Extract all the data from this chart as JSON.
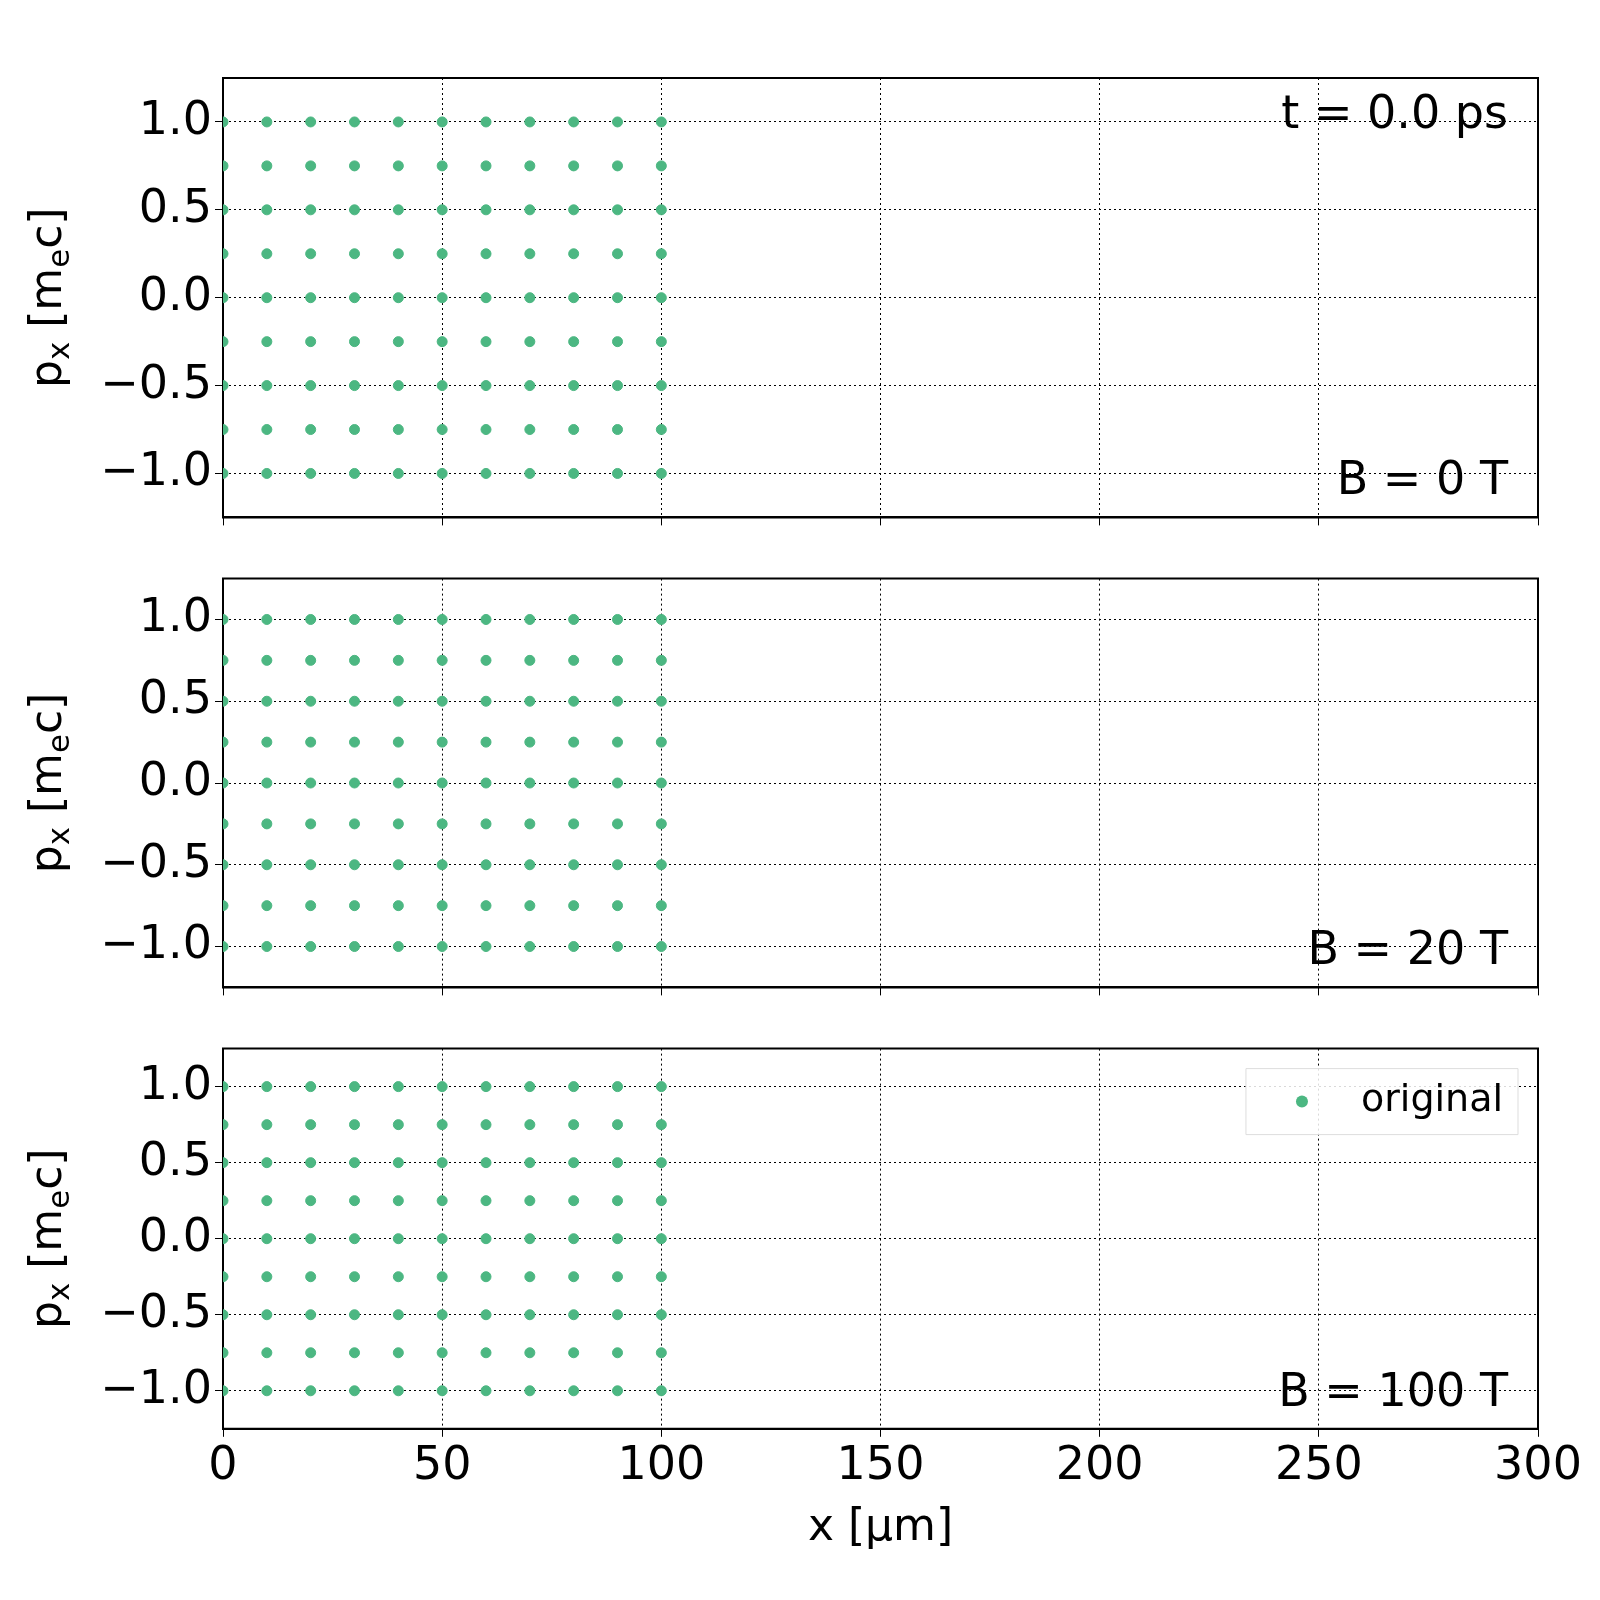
{
  "chart_data": [
    {
      "type": "scatter",
      "ylabel": "p$_{x}$ [m$_{e}$c]",
      "xlim": [
        0,
        300
      ],
      "xticks": [
        0,
        50,
        100,
        150,
        200,
        250,
        300
      ],
      "ylim": [
        -1.25,
        1.25
      ],
      "yticks": [
        {
          "value": -1,
          "label": "−1.0"
        },
        {
          "value": -0.5,
          "label": "−0.5"
        },
        {
          "value": 0,
          "label": "0.0"
        },
        {
          "value": 0.5,
          "label": "0.5"
        },
        {
          "value": 1,
          "label": "1.0"
        }
      ],
      "grid": true,
      "tick_labels": "y",
      "marker": "circle",
      "annotations": [
        "t = 0.0 ps",
        "B = 0 T"
      ],
      "series": [
        {
          "color": "#4cb782",
          "x": [
            0,
            10,
            20,
            30,
            40,
            50,
            60,
            70,
            80,
            90,
            100,
            0,
            10,
            20,
            30,
            40,
            50,
            60,
            70,
            80,
            90,
            100,
            0,
            10,
            20,
            30,
            40,
            50,
            60,
            70,
            80,
            90,
            100,
            0,
            10,
            20,
            30,
            40,
            50,
            60,
            70,
            80,
            90,
            100,
            0,
            10,
            20,
            30,
            40,
            50,
            60,
            70,
            80,
            90,
            100,
            0,
            10,
            20,
            30,
            40,
            50,
            60,
            70,
            80,
            90,
            100,
            0,
            10,
            20,
            30,
            40,
            50,
            60,
            70,
            80,
            90,
            100,
            0,
            10,
            20,
            30,
            40,
            50,
            60,
            70,
            80,
            90,
            100,
            0,
            10,
            20,
            30,
            40,
            50,
            60,
            70,
            80,
            90,
            100
          ],
          "values": [
            1,
            1,
            1,
            1,
            1,
            1,
            1,
            1,
            1,
            1,
            1,
            0.75,
            0.75,
            0.75,
            0.75,
            0.75,
            0.75,
            0.75,
            0.75,
            0.75,
            0.75,
            0.75,
            0.5,
            0.5,
            0.5,
            0.5,
            0.5,
            0.5,
            0.5,
            0.5,
            0.5,
            0.5,
            0.5,
            0.25,
            0.25,
            0.25,
            0.25,
            0.25,
            0.25,
            0.25,
            0.25,
            0.25,
            0.25,
            0.25,
            0,
            0,
            0,
            0,
            0,
            0,
            0,
            0,
            0,
            0,
            0,
            -0.25,
            -0.25,
            -0.25,
            -0.25,
            -0.25,
            -0.25,
            -0.25,
            -0.25,
            -0.25,
            -0.25,
            -0.25,
            -0.5,
            -0.5,
            -0.5,
            -0.5,
            -0.5,
            -0.5,
            -0.5,
            -0.5,
            -0.5,
            -0.5,
            -0.5,
            -0.75,
            -0.75,
            -0.75,
            -0.75,
            -0.75,
            -0.75,
            -0.75,
            -0.75,
            -0.75,
            -0.75,
            -0.75,
            -1,
            -1,
            -1,
            -1,
            -1,
            -1,
            -1,
            -1,
            -1,
            -1,
            -1
          ]
        }
      ]
    },
    {
      "type": "scatter",
      "ylabel": "p$_{x}$ [m$_{e}$c]",
      "xlim": [
        0,
        300
      ],
      "xticks": [
        0,
        50,
        100,
        150,
        200,
        250,
        300
      ],
      "ylim": [
        -1.25,
        1.25
      ],
      "yticks": [
        {
          "value": -1,
          "label": "−1.0"
        },
        {
          "value": -0.5,
          "label": "−0.5"
        },
        {
          "value": 0,
          "label": "0.0"
        },
        {
          "value": 0.5,
          "label": "0.5"
        },
        {
          "value": 1,
          "label": "1.0"
        }
      ],
      "grid": true,
      "tick_labels": "y",
      "marker": "circle",
      "annotations": [
        "B = 20 T"
      ],
      "series": [
        {
          "color": "#4cb782",
          "x": [
            0,
            10,
            20,
            30,
            40,
            50,
            60,
            70,
            80,
            90,
            100,
            0,
            10,
            20,
            30,
            40,
            50,
            60,
            70,
            80,
            90,
            100,
            0,
            10,
            20,
            30,
            40,
            50,
            60,
            70,
            80,
            90,
            100,
            0,
            10,
            20,
            30,
            40,
            50,
            60,
            70,
            80,
            90,
            100,
            0,
            10,
            20,
            30,
            40,
            50,
            60,
            70,
            80,
            90,
            100,
            0,
            10,
            20,
            30,
            40,
            50,
            60,
            70,
            80,
            90,
            100,
            0,
            10,
            20,
            30,
            40,
            50,
            60,
            70,
            80,
            90,
            100,
            0,
            10,
            20,
            30,
            40,
            50,
            60,
            70,
            80,
            90,
            100,
            0,
            10,
            20,
            30,
            40,
            50,
            60,
            70,
            80,
            90,
            100
          ],
          "values": [
            1,
            1,
            1,
            1,
            1,
            1,
            1,
            1,
            1,
            1,
            1,
            0.75,
            0.75,
            0.75,
            0.75,
            0.75,
            0.75,
            0.75,
            0.75,
            0.75,
            0.75,
            0.75,
            0.5,
            0.5,
            0.5,
            0.5,
            0.5,
            0.5,
            0.5,
            0.5,
            0.5,
            0.5,
            0.5,
            0.25,
            0.25,
            0.25,
            0.25,
            0.25,
            0.25,
            0.25,
            0.25,
            0.25,
            0.25,
            0.25,
            0,
            0,
            0,
            0,
            0,
            0,
            0,
            0,
            0,
            0,
            0,
            -0.25,
            -0.25,
            -0.25,
            -0.25,
            -0.25,
            -0.25,
            -0.25,
            -0.25,
            -0.25,
            -0.25,
            -0.25,
            -0.5,
            -0.5,
            -0.5,
            -0.5,
            -0.5,
            -0.5,
            -0.5,
            -0.5,
            -0.5,
            -0.5,
            -0.5,
            -0.75,
            -0.75,
            -0.75,
            -0.75,
            -0.75,
            -0.75,
            -0.75,
            -0.75,
            -0.75,
            -0.75,
            -0.75,
            -1,
            -1,
            -1,
            -1,
            -1,
            -1,
            -1,
            -1,
            -1,
            -1,
            -1
          ]
        }
      ]
    },
    {
      "type": "scatter",
      "xlabel": "x [μm]",
      "ylabel": "p$_{x}$ [m$_{e}$c]",
      "xlim": [
        0,
        300
      ],
      "xticks": [
        0,
        50,
        100,
        150,
        200,
        250,
        300
      ],
      "ylim": [
        -1.25,
        1.25
      ],
      "yticks": [
        {
          "value": -1,
          "label": "−1.0"
        },
        {
          "value": -0.5,
          "label": "−0.5"
        },
        {
          "value": 0,
          "label": "0.0"
        },
        {
          "value": 0.5,
          "label": "0.5"
        },
        {
          "value": 1,
          "label": "1.0"
        }
      ],
      "grid": true,
      "legend": "top right",
      "marker": "circle",
      "annotations": [
        "B = 100 T"
      ],
      "series": [
        {
          "name": "original",
          "color": "#4cb782",
          "x": [
            0,
            10,
            20,
            30,
            40,
            50,
            60,
            70,
            80,
            90,
            100,
            0,
            10,
            20,
            30,
            40,
            50,
            60,
            70,
            80,
            90,
            100,
            0,
            10,
            20,
            30,
            40,
            50,
            60,
            70,
            80,
            90,
            100,
            0,
            10,
            20,
            30,
            40,
            50,
            60,
            70,
            80,
            90,
            100,
            0,
            10,
            20,
            30,
            40,
            50,
            60,
            70,
            80,
            90,
            100,
            0,
            10,
            20,
            30,
            40,
            50,
            60,
            70,
            80,
            90,
            100,
            0,
            10,
            20,
            30,
            40,
            50,
            60,
            70,
            80,
            90,
            100,
            0,
            10,
            20,
            30,
            40,
            50,
            60,
            70,
            80,
            90,
            100,
            0,
            10,
            20,
            30,
            40,
            50,
            60,
            70,
            80,
            90,
            100
          ],
          "values": [
            1,
            1,
            1,
            1,
            1,
            1,
            1,
            1,
            1,
            1,
            1,
            0.75,
            0.75,
            0.75,
            0.75,
            0.75,
            0.75,
            0.75,
            0.75,
            0.75,
            0.75,
            0.75,
            0.5,
            0.5,
            0.5,
            0.5,
            0.5,
            0.5,
            0.5,
            0.5,
            0.5,
            0.5,
            0.5,
            0.25,
            0.25,
            0.25,
            0.25,
            0.25,
            0.25,
            0.25,
            0.25,
            0.25,
            0.25,
            0.25,
            0,
            0,
            0,
            0,
            0,
            0,
            0,
            0,
            0,
            0,
            0,
            -0.25,
            -0.25,
            -0.25,
            -0.25,
            -0.25,
            -0.25,
            -0.25,
            -0.25,
            -0.25,
            -0.25,
            -0.25,
            -0.5,
            -0.5,
            -0.5,
            -0.5,
            -0.5,
            -0.5,
            -0.5,
            -0.5,
            -0.5,
            -0.5,
            -0.5,
            -0.75,
            -0.75,
            -0.75,
            -0.75,
            -0.75,
            -0.75,
            -0.75,
            -0.75,
            -0.75,
            -0.75,
            -0.75,
            -1,
            -1,
            -1,
            -1,
            -1,
            -1,
            -1,
            -1,
            -1,
            -1,
            -1
          ]
        }
      ]
    }
  ]
}
